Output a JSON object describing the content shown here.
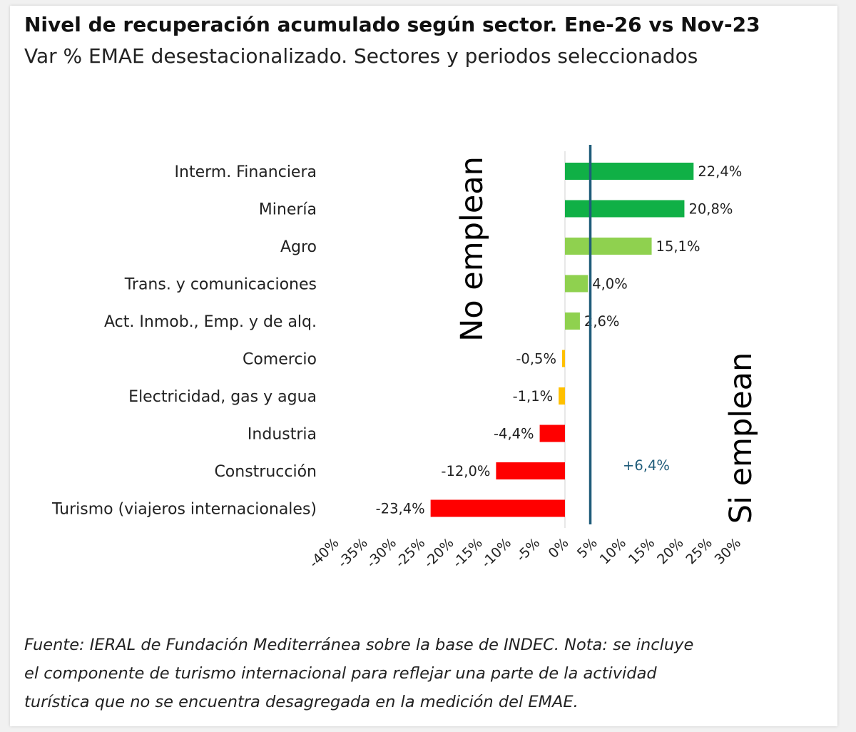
{
  "header": {
    "title": "Nivel de recuperación acumulado según sector. Ene-26 vs Nov-23",
    "subtitle": "Var % EMAE desestacionalizado. Sectores y periodos seleccionados"
  },
  "chart_data": {
    "type": "bar",
    "orientation": "horizontal",
    "title": "Nivel de recuperación acumulado según sector. Ene-26 vs Nov-23",
    "subtitle": "Var % EMAE desestacionalizado. Sectores y periodos seleccionados",
    "categories": [
      "Interm. Financiera",
      "Minería",
      "Agro",
      "Trans. y comunicaciones",
      "Act. Inmob., Emp. y de alq.",
      "Comercio",
      "Electricidad, gas y agua",
      "Industria",
      "Construcción",
      "Turismo (viajeros internacionales)"
    ],
    "values": [
      22.4,
      20.8,
      15.1,
      4.0,
      2.6,
      -0.5,
      -1.1,
      -4.4,
      -12.0,
      -23.4
    ],
    "value_labels": [
      "22,4%",
      "20,8%",
      "15,1%",
      "4,0%",
      "2,6%",
      "-0,5%",
      "-1,1%",
      "-4,4%",
      "-12,0%",
      "-23,4%"
    ],
    "bar_colors": [
      "#10b046",
      "#10b046",
      "#8fd14f",
      "#8fd14f",
      "#8fd14f",
      "#ffc000",
      "#ffc000",
      "#ff0000",
      "#ff0000",
      "#ff0000"
    ],
    "xlim": [
      -40,
      30
    ],
    "xticks": [
      -40,
      -35,
      -30,
      -25,
      -20,
      -15,
      -10,
      -5,
      0,
      5,
      10,
      15,
      20,
      25,
      30
    ],
    "xtick_labels": [
      "-40%",
      "-35%",
      "-30%",
      "-25%",
      "-20%",
      "-15%",
      "-10%",
      "-5%",
      "0%",
      "5%",
      "10%",
      "15%",
      "20%",
      "25%",
      "30%"
    ],
    "reference_line": {
      "value": 6.4,
      "label": "+6,4%",
      "color": "#1f5c7a"
    },
    "annotations": [
      {
        "text": "No emplean",
        "placement": "vertical, left of reference line, upper half"
      },
      {
        "text": "Si emplean",
        "placement": "vertical, right of reference line, lower half"
      }
    ],
    "grid": false
  },
  "footer": {
    "caption_lines": [
      "Fuente: IERAL de Fundación Mediterránea sobre la base de INDEC. Nota: se incluye",
      "el componente de turismo internacional para reflejar una parte de la actividad",
      "turística que no se encuentra desagregada en la medición del EMAE."
    ]
  }
}
